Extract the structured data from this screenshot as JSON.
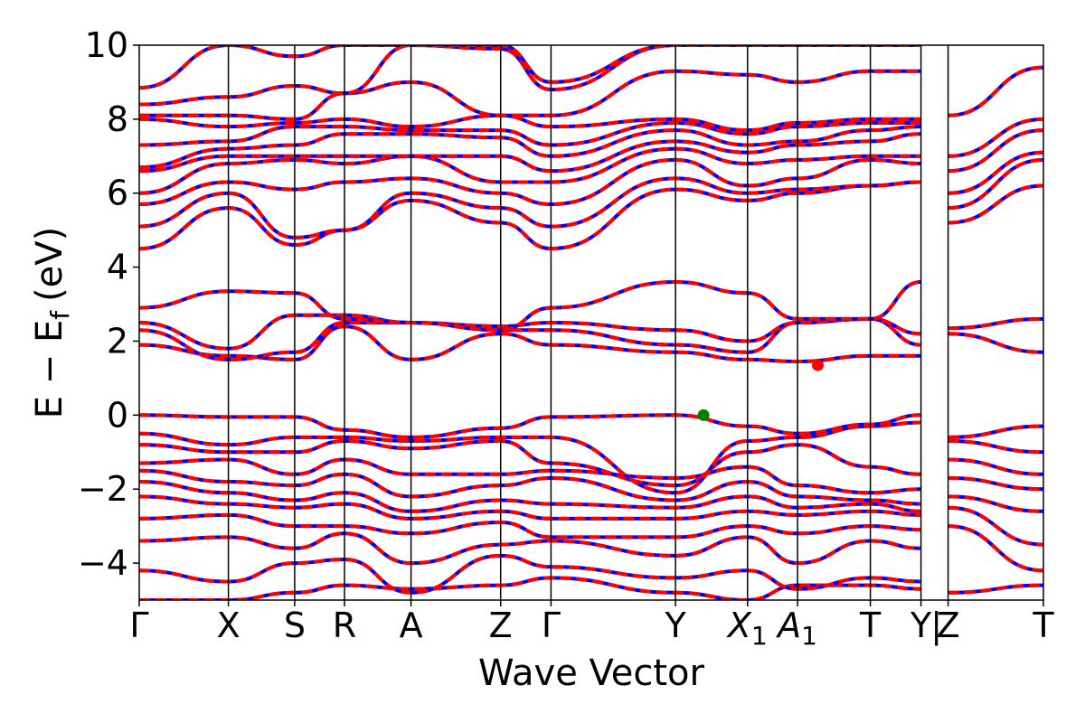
{
  "chart_data": {
    "type": "line",
    "title": "",
    "xlabel": "Wave Vector",
    "ylabel_main": "E − E",
    "ylabel_sub": "f",
    "ylabel_unit": "(eV)",
    "ylim": [
      -5,
      10
    ],
    "yticks": [
      -4,
      -2,
      0,
      2,
      4,
      6,
      8,
      10
    ],
    "ytick_labels": [
      "−4",
      "−2",
      "0",
      "2",
      "4",
      "6",
      "8",
      "10"
    ],
    "xlim": [
      0,
      1
    ],
    "kpath": [
      {
        "label": "Γ",
        "x": 0.0
      },
      {
        "label": "X",
        "x": 0.0986
      },
      {
        "label": "S",
        "x": 0.1719
      },
      {
        "label": "R",
        "x": 0.227
      },
      {
        "label": "A",
        "x": 0.3006
      },
      {
        "label": "Z",
        "x": 0.3997
      },
      {
        "label": "Γ",
        "x": 0.4554
      },
      {
        "label": "Y",
        "x": 0.5931
      },
      {
        "label": "X",
        "sub": "1",
        "x": 0.6728
      },
      {
        "label": "A",
        "sub": "1",
        "x": 0.7281
      },
      {
        "label": "T",
        "x": 0.8086
      },
      {
        "label": "Y",
        "x": 0.8646
      },
      {
        "label": "Z",
        "x": 0.8946
      },
      {
        "label": "T",
        "x": 1.0
      }
    ],
    "break_label": "|",
    "band_colors": {
      "primary": "#ff0000",
      "secondary": "#0000ff"
    },
    "markers": [
      {
        "name": "VBM",
        "x": 0.6241,
        "y": 0.0,
        "color": "#008000"
      },
      {
        "name": "CBM",
        "x": 0.7505,
        "y": 1.35,
        "color": "#ff0000"
      }
    ],
    "bands": [
      {
        "x": [
          0,
          0.0986,
          0.1719,
          0.227,
          0.3006,
          0.3997,
          0.4554,
          0.5931,
          0.6728,
          0.7281,
          0.8086,
          0.8646
        ],
        "y": [
          -5.0,
          -5.0,
          -4.8,
          -4.6,
          -4.7,
          -4.6,
          -4.4,
          -4.8,
          -5.0,
          -4.6,
          -4.6,
          -4.7
        ]
      },
      {
        "x": [
          0,
          0.0986,
          0.1719,
          0.227,
          0.3006,
          0.3997,
          0.4554,
          0.5931,
          0.6728,
          0.7281,
          0.8086,
          0.8646
        ],
        "y": [
          -4.2,
          -4.5,
          -4.0,
          -3.9,
          -4.8,
          -3.8,
          -4.1,
          -4.4,
          -4.2,
          -4.7,
          -4.4,
          -4.5
        ]
      },
      {
        "x": [
          0,
          0.0986,
          0.1719,
          0.227,
          0.3006,
          0.3997,
          0.4554,
          0.5931,
          0.6728,
          0.7281,
          0.8086,
          0.8646
        ],
        "y": [
          -3.4,
          -3.3,
          -3.6,
          -3.2,
          -4.0,
          -3.5,
          -3.4,
          -3.8,
          -3.3,
          -4.0,
          -3.4,
          -3.6
        ]
      },
      {
        "x": [
          0,
          0.0986,
          0.1719,
          0.227,
          0.3006,
          0.3997,
          0.4554,
          0.5931,
          0.6728,
          0.7281,
          0.8086,
          0.8646
        ],
        "y": [
          -2.8,
          -2.7,
          -3.0,
          -3.0,
          -3.2,
          -2.9,
          -3.3,
          -3.3,
          -3.0,
          -3.2,
          -3.0,
          -3.1
        ]
      },
      {
        "x": [
          0,
          0.0986,
          0.1719,
          0.227,
          0.3006,
          0.3997,
          0.4554,
          0.5931,
          0.6728,
          0.7281,
          0.8086,
          0.8646
        ],
        "y": [
          -2.2,
          -2.4,
          -2.5,
          -2.4,
          -2.8,
          -2.6,
          -2.8,
          -2.8,
          -2.6,
          -2.7,
          -2.6,
          -2.7
        ]
      },
      {
        "x": [
          0,
          0.0986,
          0.1719,
          0.227,
          0.3006,
          0.3997,
          0.4554,
          0.5931,
          0.6728,
          0.7281,
          0.8086,
          0.8646
        ],
        "y": [
          -1.8,
          -2.1,
          -2.3,
          -2.1,
          -2.6,
          -2.3,
          -2.4,
          -2.5,
          -2.2,
          -2.5,
          -2.4,
          -2.6
        ]
      },
      {
        "x": [
          0,
          0.0986,
          0.1719,
          0.227,
          0.3006,
          0.3997,
          0.4554,
          0.5931,
          0.6728,
          0.7281,
          0.8086,
          0.8646
        ],
        "y": [
          -1.5,
          -1.8,
          -1.9,
          -1.6,
          -2.2,
          -1.9,
          -1.7,
          -2.3,
          -1.8,
          -2.2,
          -2.3,
          -2.4
        ]
      },
      {
        "x": [
          0,
          0.0986,
          0.1719,
          0.227,
          0.3006,
          0.3997,
          0.4554,
          0.5931,
          0.6728,
          0.7281,
          0.8086,
          0.8646
        ],
        "y": [
          -1.3,
          -1.2,
          -1.6,
          -1.2,
          -1.6,
          -1.6,
          -1.5,
          -1.7,
          -1.4,
          -1.9,
          -2.1,
          -2.0
        ]
      },
      {
        "x": [
          0,
          0.0986,
          0.1719,
          0.227,
          0.3006,
          0.3997,
          0.4554,
          0.5931,
          0.6728,
          0.7281,
          0.8086,
          0.8646
        ],
        "y": [
          -0.8,
          -1.0,
          -1.0,
          -0.7,
          -0.9,
          -0.7,
          -1.3,
          -1.9,
          -1.0,
          -0.8,
          -1.4,
          -1.6
        ]
      },
      {
        "x": [
          0,
          0.0986,
          0.1719,
          0.227,
          0.3006,
          0.3997,
          0.4554,
          0.5931,
          0.6728,
          0.7281,
          0.8086,
          0.8646
        ],
        "y": [
          -0.5,
          -0.8,
          -0.6,
          -0.6,
          -0.7,
          -0.6,
          -0.6,
          -2.1,
          -0.7,
          -0.6,
          -0.3,
          -0.2
        ]
      },
      {
        "x": [
          0,
          0.0986,
          0.1719,
          0.227,
          0.3006,
          0.3997,
          0.4554,
          0.5931,
          0.6728,
          0.7281,
          0.8086,
          0.8646
        ],
        "y": [
          0.0,
          -0.05,
          -0.05,
          -0.4,
          -0.6,
          -0.35,
          -0.05,
          0.0,
          -0.3,
          -0.5,
          -0.25,
          0.0
        ]
      },
      {
        "x": [
          0,
          0.0986,
          0.1719,
          0.227,
          0.3006,
          0.3997,
          0.4554,
          0.5931,
          0.6728,
          0.7281,
          0.8086,
          0.8646
        ],
        "y": [
          1.9,
          1.6,
          1.5,
          2.4,
          1.5,
          2.2,
          1.9,
          1.7,
          1.5,
          1.45,
          1.6,
          1.6
        ]
      },
      {
        "x": [
          0,
          0.0986,
          0.1719,
          0.227,
          0.3006,
          0.3997,
          0.4554,
          0.5931,
          0.6728,
          0.7281,
          0.8086,
          0.8646
        ],
        "y": [
          2.3,
          1.5,
          1.7,
          2.5,
          2.5,
          2.3,
          2.3,
          1.9,
          1.7,
          2.5,
          2.6,
          1.9
        ]
      },
      {
        "x": [
          0,
          0.0986,
          0.1719,
          0.227,
          0.3006,
          0.3997,
          0.4554,
          0.5931,
          0.6728,
          0.7281,
          0.8086,
          0.8646
        ],
        "y": [
          2.5,
          1.8,
          2.7,
          2.7,
          2.5,
          2.4,
          2.5,
          2.3,
          2.0,
          2.5,
          2.6,
          2.2
        ]
      },
      {
        "x": [
          0,
          0.0986,
          0.1719,
          0.227,
          0.3006,
          0.3997,
          0.4554,
          0.5931,
          0.6728,
          0.7281,
          0.8086,
          0.8646
        ],
        "y": [
          2.9,
          3.35,
          3.3,
          2.6,
          2.5,
          2.3,
          2.9,
          3.6,
          3.3,
          2.6,
          2.6,
          3.6
        ]
      },
      {
        "x": [
          0,
          0.0986,
          0.1719,
          0.227,
          0.3006,
          0.3997,
          0.4554,
          0.5931,
          0.6728,
          0.7281,
          0.8086,
          0.8646
        ],
        "y": [
          4.5,
          5.6,
          4.6,
          5.0,
          5.8,
          5.2,
          4.5,
          6.1,
          5.8,
          6.0,
          6.2,
          6.3
        ]
      },
      {
        "x": [
          0,
          0.0986,
          0.1719,
          0.227,
          0.3006,
          0.3997,
          0.4554,
          0.5931,
          0.6728,
          0.7281,
          0.8086,
          0.8646
        ],
        "y": [
          5.1,
          6.0,
          4.8,
          5.0,
          6.0,
          5.6,
          5.1,
          6.4,
          6.0,
          6.1,
          6.2,
          6.3
        ]
      },
      {
        "x": [
          0,
          0.0986,
          0.1719,
          0.227,
          0.3006,
          0.3997,
          0.4554,
          0.5931,
          0.6728,
          0.7281,
          0.8086,
          0.8646
        ],
        "y": [
          5.7,
          6.3,
          6.1,
          6.3,
          6.4,
          6.0,
          5.7,
          6.9,
          6.2,
          6.4,
          6.9,
          6.8
        ]
      },
      {
        "x": [
          0,
          0.0986,
          0.1719,
          0.227,
          0.3006,
          0.3997,
          0.4554,
          0.5931,
          0.6728,
          0.7281,
          0.8086,
          0.8646
        ],
        "y": [
          6.0,
          6.8,
          6.9,
          6.8,
          7.0,
          6.3,
          6.3,
          7.2,
          6.8,
          6.9,
          7.0,
          7.0
        ]
      },
      {
        "x": [
          0,
          0.0986,
          0.1719,
          0.227,
          0.3006,
          0.3997,
          0.4554,
          0.5931,
          0.6728,
          0.7281,
          0.8086,
          0.8646
        ],
        "y": [
          6.6,
          7.0,
          7.0,
          7.0,
          7.0,
          7.0,
          6.6,
          7.4,
          7.1,
          7.3,
          7.4,
          7.6
        ]
      },
      {
        "x": [
          0,
          0.0986,
          0.1719,
          0.227,
          0.3006,
          0.3997,
          0.4554,
          0.5931,
          0.6728,
          0.7281,
          0.8086,
          0.8646
        ],
        "y": [
          6.7,
          7.2,
          7.3,
          7.6,
          7.6,
          7.5,
          7.0,
          7.7,
          7.3,
          7.4,
          7.7,
          7.8
        ]
      },
      {
        "x": [
          0,
          0.0986,
          0.1719,
          0.227,
          0.3006,
          0.3997,
          0.4554,
          0.5931,
          0.6728,
          0.7281,
          0.8086,
          0.8646
        ],
        "y": [
          7.3,
          7.4,
          7.8,
          7.8,
          7.7,
          7.7,
          7.3,
          7.9,
          7.6,
          7.8,
          7.9,
          7.9
        ]
      },
      {
        "x": [
          0,
          0.0986,
          0.1719,
          0.227,
          0.3006,
          0.3997,
          0.4554,
          0.5931,
          0.6728,
          0.7281,
          0.8086,
          0.8646
        ],
        "y": [
          8.0,
          7.8,
          7.9,
          8.0,
          7.8,
          8.1,
          7.8,
          8.0,
          7.7,
          7.9,
          8.0,
          8.0
        ]
      },
      {
        "x": [
          0,
          0.0986,
          0.1719,
          0.227,
          0.3006,
          0.3997,
          0.4554,
          0.5931,
          0.6728,
          0.7281,
          0.8086,
          0.8646
        ],
        "y": [
          8.1,
          8.1,
          8.0,
          8.7,
          9.0,
          8.1,
          8.1,
          9.3,
          9.2,
          9.0,
          9.3,
          9.3
        ]
      },
      {
        "x": [
          0,
          0.0986,
          0.1719,
          0.227,
          0.3006,
          0.3997,
          0.4554,
          0.5931,
          0.6728,
          0.7281,
          0.8086,
          0.8646
        ],
        "y": [
          8.4,
          8.6,
          8.9,
          8.7,
          10.0,
          9.9,
          8.8,
          10.0,
          10.0,
          10.0,
          10.0,
          10.0
        ]
      },
      {
        "x": [
          0,
          0.0986,
          0.1719,
          0.227,
          0.3006,
          0.3997,
          0.4554,
          0.5931,
          0.6728,
          0.7281,
          0.8086,
          0.8646
        ],
        "y": [
          8.85,
          10.0,
          9.7,
          10.0,
          10.0,
          10.0,
          9.0,
          10.0,
          10.0,
          10.0,
          10.0,
          10.0
        ]
      },
      {
        "x": [
          0.8946,
          1.0
        ],
        "y": [
          -4.8,
          -4.6
        ]
      },
      {
        "x": [
          0.8946,
          1.0
        ],
        "y": [
          -3.0,
          -4.2
        ]
      },
      {
        "x": [
          0.8946,
          1.0
        ],
        "y": [
          -2.5,
          -3.5
        ]
      },
      {
        "x": [
          0.8946,
          1.0
        ],
        "y": [
          -2.2,
          -2.6
        ]
      },
      {
        "x": [
          0.8946,
          1.0
        ],
        "y": [
          -1.7,
          -2.0
        ]
      },
      {
        "x": [
          0.8946,
          1.0
        ],
        "y": [
          -1.2,
          -1.6
        ]
      },
      {
        "x": [
          0.8946,
          1.0
        ],
        "y": [
          -0.7,
          -1.0
        ]
      },
      {
        "x": [
          0.8946,
          1.0
        ],
        "y": [
          -0.6,
          -0.3
        ]
      },
      {
        "x": [
          0.8946,
          1.0
        ],
        "y": [
          2.2,
          1.7
        ]
      },
      {
        "x": [
          0.8946,
          1.0
        ],
        "y": [
          2.35,
          2.6
        ]
      },
      {
        "x": [
          0.8946,
          1.0
        ],
        "y": [
          5.2,
          6.2
        ]
      },
      {
        "x": [
          0.8946,
          1.0
        ],
        "y": [
          5.6,
          6.9
        ]
      },
      {
        "x": [
          0.8946,
          1.0
        ],
        "y": [
          6.0,
          7.1
        ]
      },
      {
        "x": [
          0.8946,
          1.0
        ],
        "y": [
          6.6,
          7.7
        ]
      },
      {
        "x": [
          0.8946,
          1.0
        ],
        "y": [
          7.0,
          8.0
        ]
      },
      {
        "x": [
          0.8946,
          1.0
        ],
        "y": [
          8.1,
          9.4
        ]
      }
    ]
  }
}
